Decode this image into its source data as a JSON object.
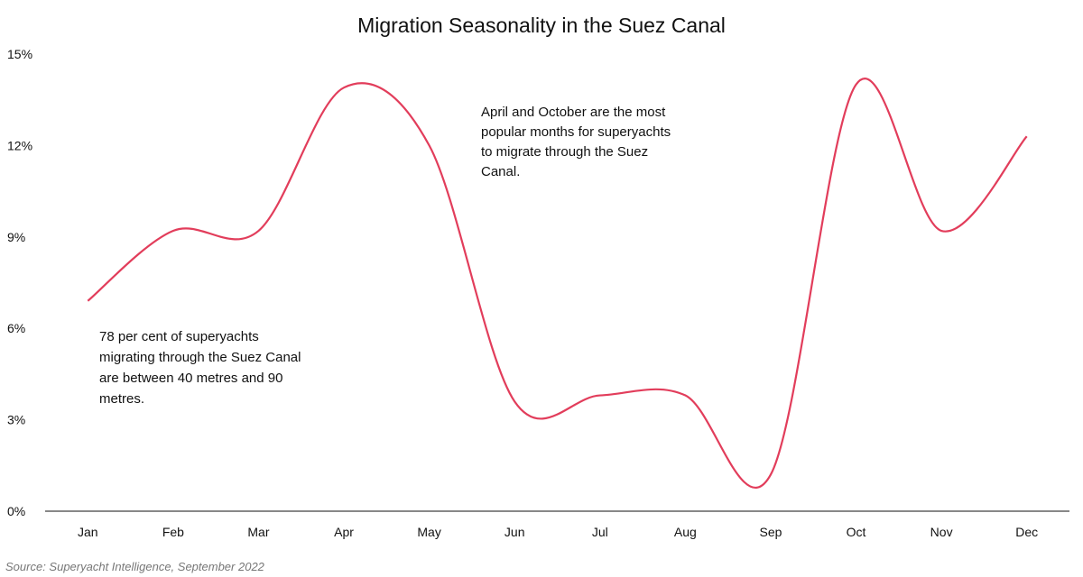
{
  "chart_data": {
    "type": "line",
    "title": "Migration Seasonality in the Suez Canal",
    "xlabel": "",
    "ylabel": "",
    "categories": [
      "Jan",
      "Feb",
      "Mar",
      "Apr",
      "May",
      "Jun",
      "Jul",
      "Aug",
      "Sep",
      "Oct",
      "Nov",
      "Dec"
    ],
    "series": [
      {
        "values": [
          6.9,
          9.2,
          9.2,
          13.9,
          12.0,
          3.6,
          3.8,
          3.8,
          1.2,
          14.0,
          9.2,
          12.3
        ]
      }
    ],
    "ylim": [
      0,
      15
    ],
    "yticks": [
      0,
      3,
      6,
      9,
      12,
      15
    ],
    "ytick_labels": [
      "0%",
      "3%",
      "6%",
      "9%",
      "12%",
      "15%"
    ],
    "grid": false,
    "legend": "none",
    "line_color": "#e23d5b",
    "annotations": [
      {
        "lines": [
          "April and October are the most",
          "popular months for superyachts",
          "to migrate through the Suez",
          "Canal."
        ]
      },
      {
        "lines": [
          "78 per cent of superyachts",
          "migrating through the Suez Canal",
          "are between 40 metres and 90",
          "metres."
        ]
      }
    ],
    "source": "Source: Superyacht Intelligence, September 2022"
  }
}
